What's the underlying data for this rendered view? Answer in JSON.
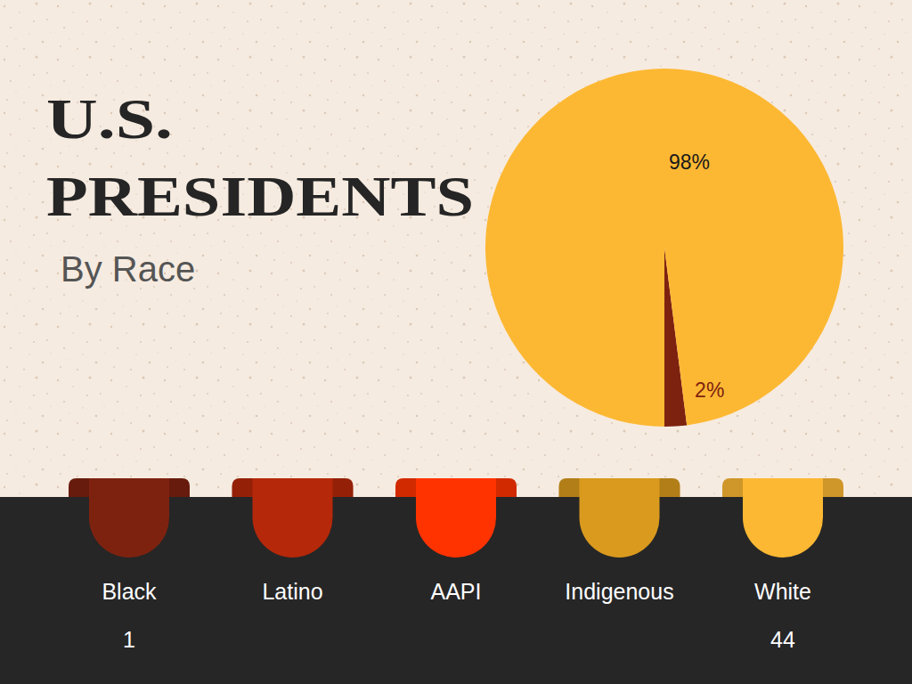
{
  "chart_data": {
    "type": "pie",
    "title": "U.S. PRESIDENTS",
    "subtitle": "By Race",
    "categories": [
      "Black",
      "Latino",
      "AAPI",
      "Indigenous",
      "White"
    ],
    "values": [
      2,
      null,
      null,
      null,
      98
    ],
    "value_labels": [
      "2%",
      null,
      null,
      null,
      "98%"
    ],
    "counts": [
      1,
      null,
      null,
      null,
      44
    ],
    "colors": [
      "#7e2210",
      "#b5280a",
      "#ff3300",
      "#d99a1e",
      "#fdb833"
    ],
    "data_labels": true,
    "legend": "bottom"
  }
}
